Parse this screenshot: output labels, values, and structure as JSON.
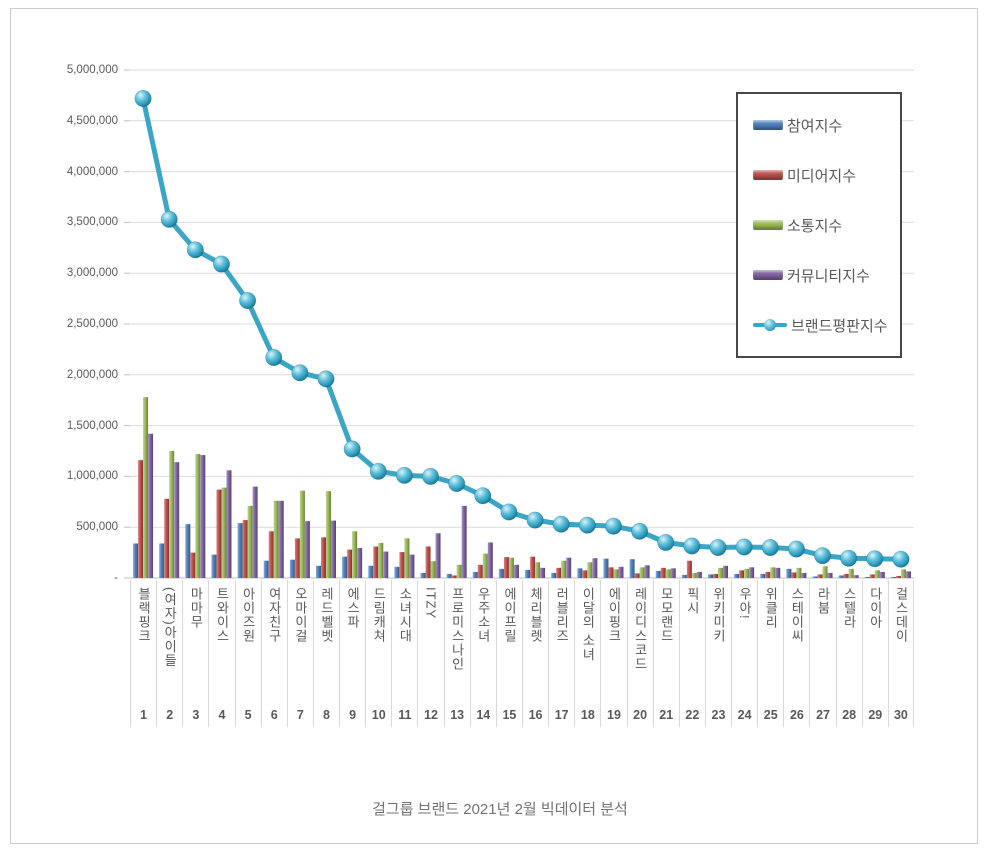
{
  "caption": "걸그룹 브랜드 2021년 2월 빅데이터 분석",
  "legend": {
    "items": [
      {
        "label": "참여지수"
      },
      {
        "label": "미디어지수"
      },
      {
        "label": "소통지수"
      },
      {
        "label": "커뮤니티지수"
      },
      {
        "label": "브랜드평판지수"
      }
    ]
  },
  "chart_data": {
    "type": "bar+line combo",
    "categories": [
      "블랙핑크",
      "(여자)아이들",
      "마마무",
      "트와이스",
      "아이즈원",
      "여자친구",
      "오마이걸",
      "레드벨벳",
      "에스파",
      "드림캐쳐",
      "소녀시대",
      "ITZY",
      "프로미스나인",
      "우주소녀",
      "에이프릴",
      "체리블렛",
      "러블리즈",
      "이달의 소녀",
      "에이핑크",
      "레이디스코드",
      "모모랜드",
      "픽시",
      "위키미키",
      "우아!",
      "위클리",
      "스테이씨",
      "라붐",
      "스텔라",
      "다이아",
      "걸스데이"
    ],
    "ranks": [
      "1",
      "2",
      "3",
      "4",
      "5",
      "6",
      "7",
      "8",
      "9",
      "10",
      "11",
      "12",
      "13",
      "14",
      "15",
      "16",
      "17",
      "18",
      "19",
      "20",
      "21",
      "22",
      "23",
      "24",
      "25",
      "26",
      "27",
      "28",
      "29",
      "30"
    ],
    "series": [
      {
        "name": "참여지수",
        "type": "bar",
        "color": "#4f81bd",
        "values": [
          340000,
          340000,
          530000,
          230000,
          540000,
          170000,
          180000,
          120000,
          210000,
          120000,
          110000,
          50000,
          40000,
          60000,
          90000,
          80000,
          50000,
          95000,
          190000,
          185000,
          70000,
          30000,
          35000,
          40000,
          40000,
          90000,
          15000,
          25000,
          10000,
          10000
        ]
      },
      {
        "name": "미디어지수",
        "type": "bar",
        "color": "#c0504d",
        "values": [
          1160000,
          780000,
          250000,
          870000,
          570000,
          460000,
          390000,
          400000,
          280000,
          310000,
          255000,
          310000,
          25000,
          130000,
          205000,
          210000,
          100000,
          75000,
          105000,
          45000,
          100000,
          170000,
          40000,
          75000,
          60000,
          55000,
          35000,
          40000,
          35000,
          20000
        ]
      },
      {
        "name": "소통지수",
        "type": "bar",
        "color": "#9bbb59",
        "values": [
          1780000,
          1250000,
          1220000,
          890000,
          710000,
          760000,
          860000,
          855000,
          460000,
          345000,
          390000,
          165000,
          130000,
          240000,
          200000,
          155000,
          170000,
          155000,
          85000,
          105000,
          85000,
          50000,
          100000,
          90000,
          105000,
          100000,
          115000,
          90000,
          75000,
          85000
        ]
      },
      {
        "name": "커뮤니티지수",
        "type": "bar",
        "color": "#8064a2",
        "values": [
          1420000,
          1140000,
          1210000,
          1060000,
          900000,
          760000,
          560000,
          565000,
          295000,
          260000,
          230000,
          440000,
          710000,
          350000,
          130000,
          100000,
          200000,
          195000,
          110000,
          125000,
          95000,
          60000,
          120000,
          105000,
          100000,
          50000,
          50000,
          28000,
          60000,
          65000
        ]
      },
      {
        "name": "브랜드평판지수",
        "type": "line",
        "color": "#3aa5c5",
        "values": [
          4720000,
          3530000,
          3230000,
          3090000,
          2730000,
          2170000,
          2020000,
          1960000,
          1270000,
          1050000,
          1010000,
          1000000,
          930000,
          810000,
          650000,
          570000,
          530000,
          520000,
          510000,
          460000,
          350000,
          315000,
          300000,
          305000,
          300000,
          285000,
          220000,
          195000,
          190000,
          185000
        ]
      }
    ],
    "ylim": [
      0,
      5000000
    ],
    "ytick_step": 500000,
    "ytick_labels": [
      "-",
      "500,000",
      "1,000,000",
      "1,500,000",
      "2,000,000",
      "2,500,000",
      "3,000,000",
      "3,500,000",
      "4,000,000",
      "4,500,000",
      "5,000,000"
    ],
    "grid": true,
    "legend_position": "top-right",
    "xlabel": "",
    "ylabel": ""
  }
}
